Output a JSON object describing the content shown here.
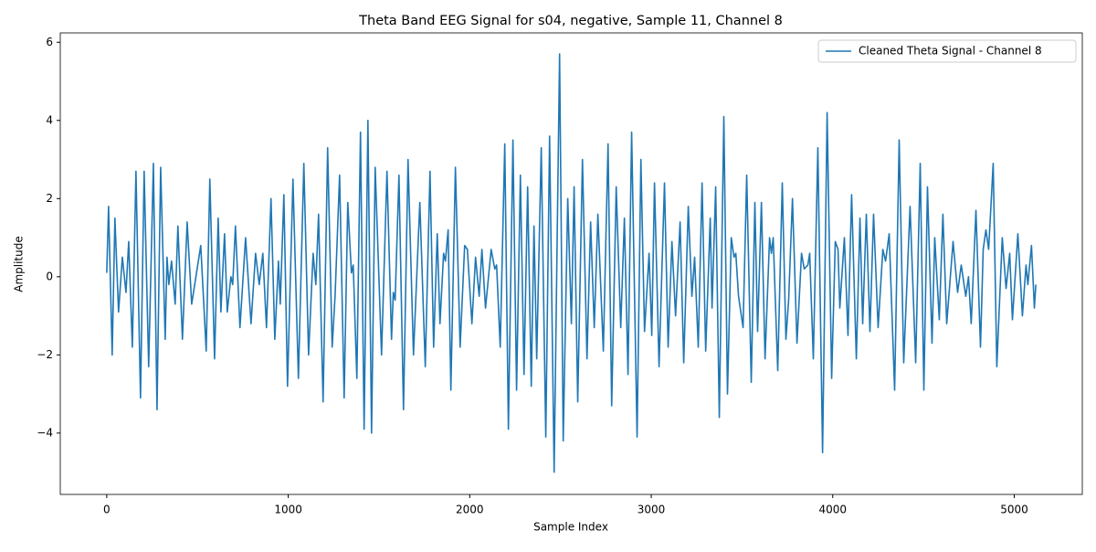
{
  "chart_data": {
    "type": "line",
    "title": "Theta Band EEG Signal for s04, negative, Sample 11, Channel 8",
    "xlabel": "Sample Index",
    "ylabel": "Amplitude",
    "xlim": [
      -256,
      5375
    ],
    "ylim": [
      -5.57,
      6.24
    ],
    "xticks": [
      0,
      1000,
      2000,
      3000,
      4000,
      5000
    ],
    "yticks": [
      {
        "value": -4,
        "label": "−4"
      },
      {
        "value": -2,
        "label": "−2"
      },
      0,
      2,
      4,
      6
    ],
    "grid": false,
    "legend": "upper right",
    "series": [
      {
        "name": "Cleaned Theta Signal - Channel 8",
        "color": "#1f77b4",
        "x": [
          0,
          10,
          30,
          45,
          65,
          86,
          106,
          121,
          141,
          161,
          186,
          206,
          231,
          257,
          277,
          297,
          322,
          332,
          342,
          357,
          377,
          392,
          417,
          443,
          468,
          518,
          548,
          568,
          594,
          614,
          629,
          649,
          664,
          684,
          694,
          709,
          734,
          765,
          795,
          820,
          840,
          860,
          880,
          905,
          926,
          946,
          956,
          976,
          996,
          1026,
          1056,
          1086,
          1112,
          1137,
          1152,
          1167,
          1192,
          1217,
          1242,
          1258,
          1283,
          1308,
          1328,
          1348,
          1358,
          1378,
          1398,
          1418,
          1439,
          1459,
          1479,
          1514,
          1544,
          1569,
          1579,
          1589,
          1610,
          1635,
          1660,
          1690,
          1725,
          1755,
          1781,
          1801,
          1821,
          1836,
          1856,
          1866,
          1881,
          1896,
          1921,
          1947,
          1972,
          1987,
          2012,
          2032,
          2052,
          2067,
          2087,
          2118,
          2138,
          2148,
          2168,
          2193,
          2213,
          2238,
          2258,
          2279,
          2299,
          2319,
          2339,
          2354,
          2369,
          2394,
          2419,
          2440,
          2465,
          2495,
          2515,
          2540,
          2560,
          2575,
          2595,
          2621,
          2646,
          2666,
          2686,
          2706,
          2736,
          2762,
          2782,
          2807,
          2832,
          2852,
          2872,
          2892,
          2922,
          2943,
          2963,
          2988,
          3003,
          3018,
          3043,
          3073,
          3093,
          3114,
          3134,
          3159,
          3179,
          3204,
          3224,
          3239,
          3259,
          3280,
          3300,
          3325,
          3335,
          3355,
          3375,
          3400,
          3420,
          3441,
          3456,
          3466,
          3481,
          3506,
          3526,
          3551,
          3571,
          3586,
          3607,
          3627,
          3652,
          3662,
          3672,
          3697,
          3722,
          3742,
          3757,
          3778,
          3803,
          3828,
          3843,
          3863,
          3873,
          3893,
          3918,
          3944,
          3969,
          3994,
          4014,
          4029,
          4039,
          4064,
          4084,
          4104,
          4130,
          4150,
          4165,
          4185,
          4205,
          4225,
          4250,
          4276,
          4291,
          4311,
          4341,
          4366,
          4391,
          4426,
          4457,
          4482,
          4502,
          4522,
          4547,
          4562,
          4587,
          4607,
          4628,
          4663,
          4688,
          4708,
          4733,
          4748,
          4763,
          4789,
          4814,
          4829,
          4844,
          4859,
          4884,
          4904,
          4934,
          4955,
          4975,
          4990,
          5020,
          5045,
          5065,
          5075,
          5095,
          5111,
          5119
        ],
        "values": [
          0.1,
          1.8,
          -2.0,
          1.5,
          -0.9,
          0.5,
          -0.4,
          0.9,
          -1.8,
          2.7,
          -3.1,
          2.7,
          -2.3,
          2.9,
          -3.4,
          2.8,
          -1.6,
          0.5,
          -0.2,
          0.4,
          -0.7,
          1.3,
          -1.6,
          1.4,
          -0.7,
          0.8,
          -1.9,
          2.5,
          -2.1,
          1.5,
          -0.9,
          1.1,
          -0.9,
          0.0,
          -0.2,
          1.3,
          -1.3,
          1.0,
          -1.2,
          0.6,
          -0.2,
          0.6,
          -1.3,
          2.0,
          -1.6,
          0.4,
          -0.7,
          2.1,
          -2.8,
          2.5,
          -2.6,
          2.9,
          -2.0,
          0.6,
          -0.2,
          1.6,
          -3.2,
          3.3,
          -1.8,
          -0.5,
          2.6,
          -3.1,
          1.9,
          0.1,
          0.3,
          -2.6,
          3.7,
          -3.9,
          4.0,
          -4.0,
          2.8,
          -2.0,
          2.7,
          -1.6,
          -0.4,
          -0.6,
          2.6,
          -3.4,
          3.0,
          -2.0,
          1.9,
          -2.3,
          2.7,
          -1.8,
          1.1,
          -1.2,
          0.6,
          0.4,
          1.2,
          -2.9,
          2.8,
          -1.8,
          0.8,
          0.7,
          -1.2,
          0.5,
          -0.5,
          0.7,
          -0.8,
          0.7,
          0.2,
          0.3,
          -1.8,
          3.4,
          -3.9,
          3.5,
          -2.9,
          2.6,
          -2.5,
          2.3,
          -2.8,
          1.3,
          -2.1,
          3.3,
          -4.1,
          3.6,
          -5.0,
          5.7,
          -4.2,
          2.0,
          -1.2,
          2.3,
          -3.2,
          3.0,
          -2.1,
          1.4,
          -1.3,
          1.6,
          -1.9,
          3.4,
          -3.3,
          2.3,
          -1.3,
          1.5,
          -2.5,
          3.7,
          -4.1,
          3.0,
          -1.4,
          0.6,
          -1.5,
          2.4,
          -2.3,
          2.4,
          -1.8,
          0.9,
          -1.0,
          1.4,
          -2.2,
          1.8,
          -0.5,
          0.5,
          -1.8,
          2.4,
          -1.9,
          1.5,
          -0.8,
          2.3,
          -3.6,
          4.1,
          -3.0,
          1.0,
          0.5,
          0.6,
          -0.5,
          -1.3,
          2.6,
          -2.7,
          1.9,
          -1.4,
          1.9,
          -2.1,
          1.0,
          0.6,
          1.0,
          -2.4,
          2.4,
          -1.6,
          -0.6,
          2.0,
          -1.7,
          0.6,
          0.2,
          0.3,
          0.6,
          -2.1,
          3.3,
          -4.5,
          4.2,
          -2.6,
          0.9,
          0.7,
          -0.8,
          1.0,
          -1.5,
          2.1,
          -2.1,
          1.5,
          -1.2,
          1.6,
          -1.4,
          1.6,
          -1.3,
          0.7,
          0.4,
          1.1,
          -2.9,
          3.5,
          -2.2,
          1.8,
          -2.2,
          2.9,
          -2.9,
          2.3,
          -1.7,
          1.0,
          -1.1,
          1.6,
          -1.2,
          0.9,
          -0.4,
          0.3,
          -0.5,
          0.0,
          -1.2,
          1.7,
          -1.8,
          0.7,
          1.2,
          0.7,
          2.9,
          -2.3,
          1.0,
          -0.3,
          0.6,
          -1.1,
          1.1,
          -1.0,
          0.3,
          -0.2,
          0.8,
          -0.8,
          -0.2
        ]
      }
    ]
  }
}
